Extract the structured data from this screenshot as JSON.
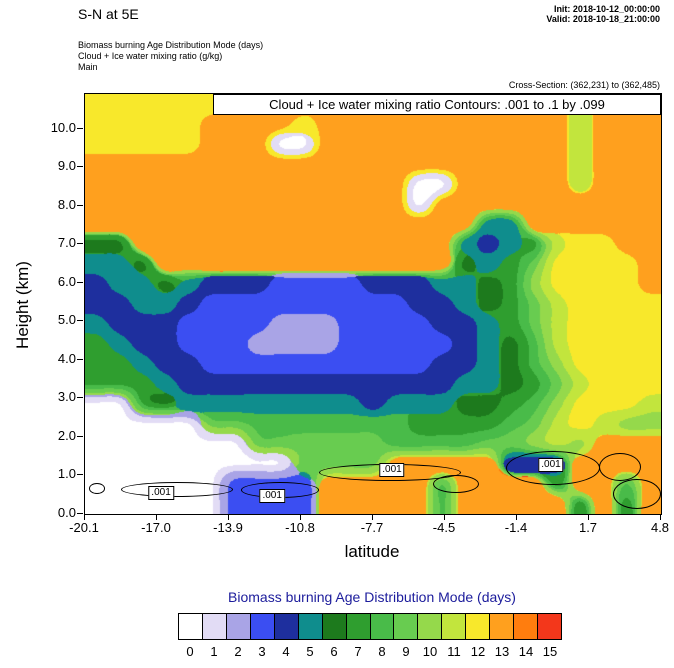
{
  "header": {
    "title": "S-N at 5E",
    "init_line": "Init: 2018-10-12_00:00:00",
    "valid_line": "Valid: 2018-10-18_21:00:00",
    "model_line": "Biomass burning Age Distribution Mode   (days)",
    "variable_line": "Cloud + Ice water mixing ratio   (g/kg)",
    "grid_line": "Main",
    "cross_section": "Cross-Section: (362,231) to (362,485)"
  },
  "chart_data": {
    "type": "heatmap",
    "annotation": "Cloud + Ice water mixing ratio Contours: .001 to .1 by .099",
    "xlabel": "latitude",
    "ylabel": "Height (km)",
    "x_ticks": [
      "-20.1",
      "-17.0",
      "-13.9",
      "-10.8",
      "-7.7",
      "-4.5",
      "-1.4",
      "1.7",
      "4.8"
    ],
    "x_range": [
      -20.1,
      4.8
    ],
    "y_ticks": [
      "0.0",
      "1.0",
      "2.0",
      "3.0",
      "4.0",
      "5.0",
      "6.0",
      "7.0",
      "8.0",
      "9.0",
      "10.0"
    ],
    "y_max_km": 10.9,
    "fill_variable": "Biomass burning Age Distribution Mode (days)",
    "fill_levels": [
      "0",
      "1",
      "2",
      "3",
      "4",
      "5",
      "6",
      "7",
      "8",
      "9",
      "10",
      "11",
      "12",
      "13",
      "14",
      "15"
    ],
    "palette": [
      "#ffffff",
      "#e2dcf5",
      "#a9a4e6",
      "#3b4ef2",
      "#1e2f9e",
      "#0f8d8d",
      "#1d7a1d",
      "#2f9e2f",
      "#49bb49",
      "#68cc50",
      "#95d94b",
      "#c2e53d",
      "#f8e82b",
      "#ffa01e",
      "#ff7d0e",
      "#f3371b"
    ],
    "grid_rows_top_to_bottom": [
      "CCCCCCCCDDDDDDDDDDDDDBDDD",
      "CCCCCDDDDCDDDDDDDDDDDBDDD",
      "CCCCCDDD00DDDDDDDDDDDBDDD",
      "DDDDDDDDDDDDDDDDDDDDDBDDD",
      "DDDDDDDDDDDDDD00DDDDDBDDD",
      "DDDDDDDDDDDDDD0DDDDDDDDDD",
      "DDDDDDDDDDDDDDDDD55DDDDDD",
      "66DDDDDDDDDDDDDD5457BCCDD",
      "556DDDDDDDDDDDDD6579CCCCD",
      "4556544433334445567ACCCCD",
      "44554333333333445679BCCCC",
      "54443333222333344579BCCCC",
      "75443332222333334568BCCCC",
      "77544333333333344568ACCCC",
      "777544444444444455679BCCC",
      "00765555555545556678ACCCB",
      "00000998888888777789BCBAA",
      "0000000999999888899ABADDD",
      "0000000009999DDDDD444DDDD",
      "0000003333DDDDD8DDDD7DD8D",
      "0000003333DDDDD8DDDDD7D7D"
    ],
    "cloud_contours": {
      "label": ".001",
      "label_positions_frac": [
        [
          0.132,
          0.95
        ],
        [
          0.325,
          0.957
        ],
        [
          0.533,
          0.895
        ],
        [
          0.809,
          0.883
        ]
      ],
      "ellipses_frac": [
        [
          0.007,
          0.926,
          0.024,
          0.021
        ],
        [
          0.062,
          0.924,
          0.191,
          0.031
        ],
        [
          0.271,
          0.924,
          0.132,
          0.033
        ],
        [
          0.406,
          0.881,
          0.243,
          0.036
        ],
        [
          0.731,
          0.85,
          0.16,
          0.076
        ],
        [
          0.892,
          0.855,
          0.069,
          0.062
        ],
        [
          0.917,
          0.917,
          0.08,
          0.067
        ],
        [
          0.604,
          0.907,
          0.076,
          0.038
        ]
      ]
    },
    "colorbar": {
      "title": "Biomass burning Age Distribution Mode  (days)",
      "tick_labels": [
        "0",
        "1",
        "2",
        "3",
        "4",
        "5",
        "6",
        "7",
        "8",
        "9",
        "10",
        "11",
        "12",
        "13",
        "14",
        "15"
      ]
    }
  }
}
